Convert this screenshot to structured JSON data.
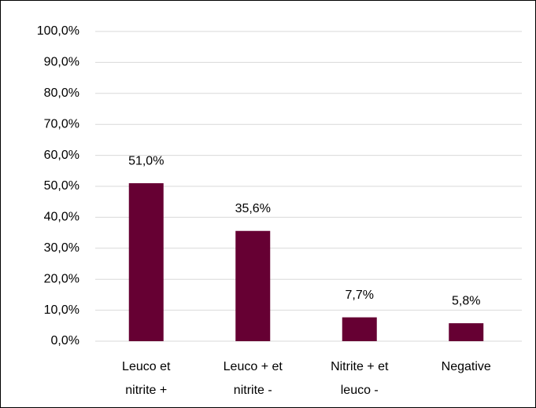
{
  "chart_data": {
    "type": "bar",
    "categories": [
      "Leuco et nitrite +",
      "Leuco + et nitrite -",
      "Nitrite + et leuco -",
      "Negative"
    ],
    "values": [
      51.0,
      35.6,
      7.7,
      5.8
    ],
    "value_labels": [
      "51,0%",
      "35,6%",
      "7,7%",
      "5,8%"
    ],
    "color": "#660033",
    "ylim": [
      0,
      100
    ],
    "yticks": [
      {
        "value": 0,
        "label": "0,0%"
      },
      {
        "value": 10,
        "label": "10,0%"
      },
      {
        "value": 20,
        "label": "20,0%"
      },
      {
        "value": 30,
        "label": "30,0%"
      },
      {
        "value": 40,
        "label": "40,0%"
      },
      {
        "value": 50,
        "label": "50,0%"
      },
      {
        "value": 60,
        "label": "60,0%"
      },
      {
        "value": 70,
        "label": "70,0%"
      },
      {
        "value": 80,
        "label": "80,0%"
      },
      {
        "value": 90,
        "label": "90,0%"
      },
      {
        "value": 100,
        "label": "100,0%"
      }
    ],
    "grid": true
  }
}
